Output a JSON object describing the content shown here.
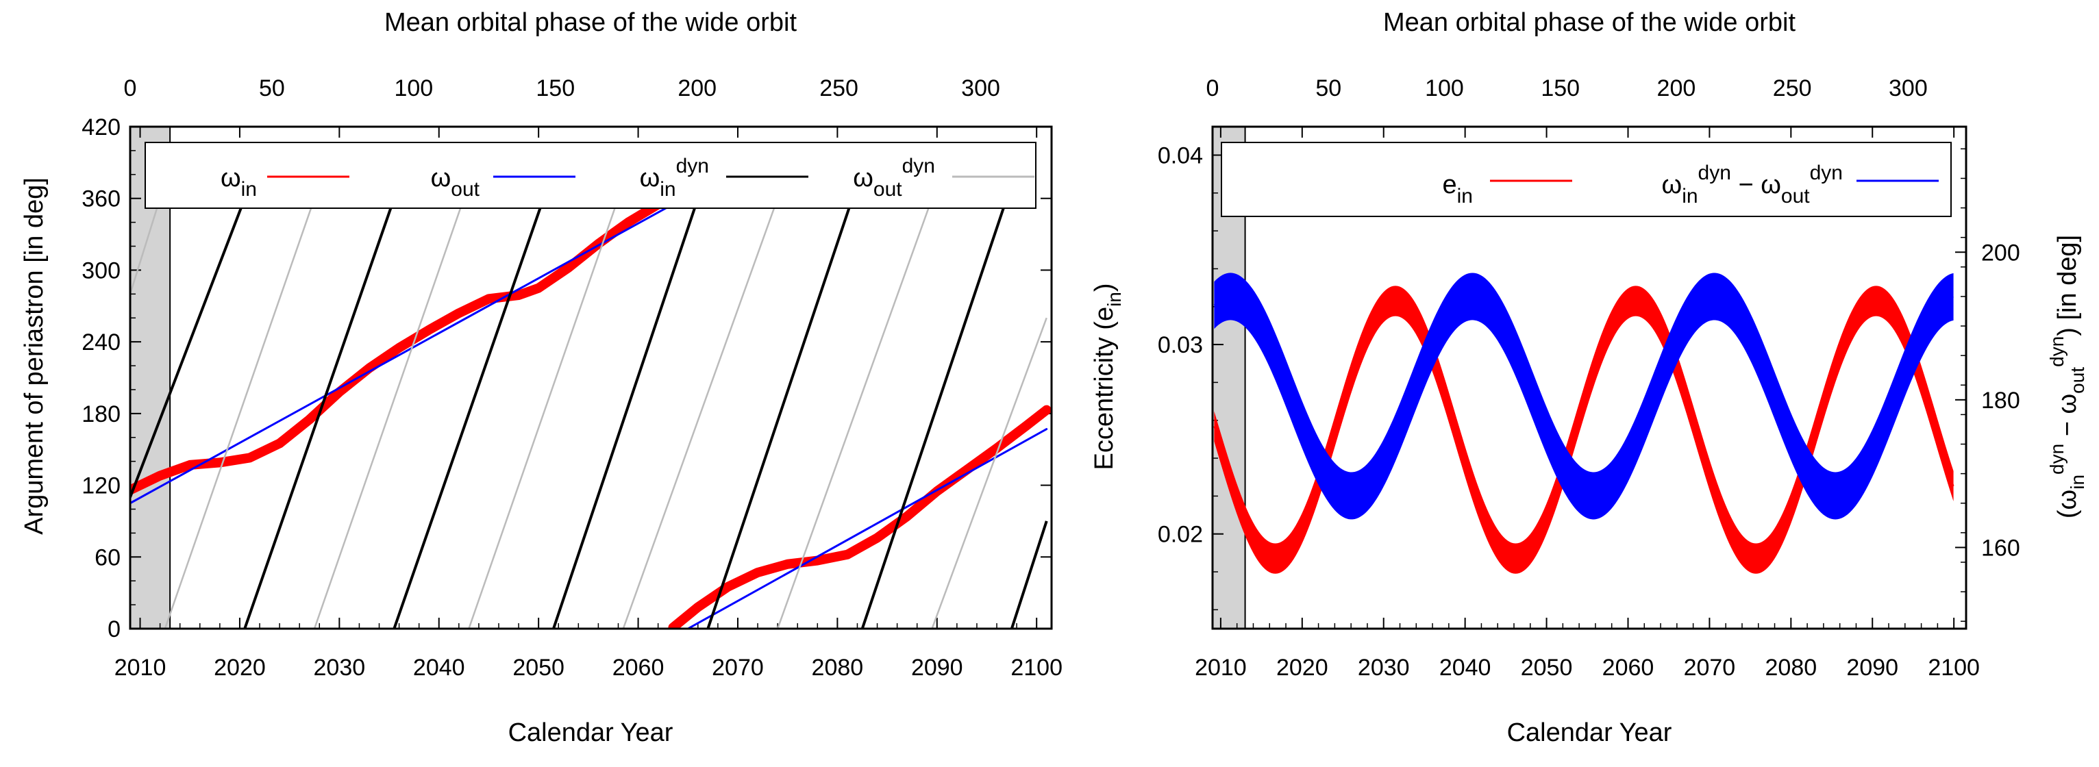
{
  "chart_data": [
    {
      "type": "line",
      "panel": "left",
      "top_axis_label": "Mean orbital phase of the wide orbit",
      "top_ticks": [
        0,
        50,
        100,
        150,
        200,
        250,
        300
      ],
      "xlabel": "Calendar Year",
      "ylabel": "Argument of periastron [in deg]",
      "x_ticks": [
        2010,
        2020,
        2030,
        2040,
        2050,
        2060,
        2070,
        2080,
        2090,
        2100
      ],
      "y_ticks": [
        0,
        60,
        120,
        180,
        240,
        300,
        360,
        420
      ],
      "xlim": [
        2009,
        2101.5
      ],
      "ylim": [
        0,
        420
      ],
      "shaded_region": [
        2009,
        2013
      ],
      "legend": {
        "placement": "top",
        "entries": [
          {
            "main": "ω",
            "sub": "in",
            "sup": "",
            "color": "#ff0000"
          },
          {
            "main": "ω",
            "sub": "out",
            "sup": "",
            "color": "#0000ff"
          },
          {
            "main": "ω",
            "sub": "in",
            "sup": "dyn",
            "color": "#000000"
          },
          {
            "main": "ω",
            "sub": "out",
            "sup": "dyn",
            "color": "#bbbbbb"
          }
        ]
      },
      "series": [
        {
          "key": "omega_in",
          "color": "#ff0000",
          "style": "thick-band",
          "x": [
            2009,
            2012,
            2015,
            2018,
            2021,
            2024,
            2027,
            2030,
            2033,
            2036,
            2039,
            2042,
            2045,
            2048,
            2050,
            2053,
            2056,
            2059,
            2062,
            2063.5
          ],
          "y": [
            116,
            128,
            137,
            139,
            143,
            155,
            175,
            198,
            218,
            235,
            250,
            264,
            276,
            279,
            285,
            302,
            322,
            340,
            355,
            361
          ]
        },
        {
          "key": "omega_in_wrap",
          "color": "#ff0000",
          "style": "thick-band",
          "x": [
            2063.5,
            2066,
            2069,
            2072,
            2075,
            2078,
            2081,
            2084,
            2087,
            2090,
            2093,
            2096,
            2099,
            2101
          ],
          "y": [
            1,
            18,
            35,
            47,
            54,
            57,
            62,
            76,
            94,
            115,
            133,
            151,
            170,
            183
          ]
        },
        {
          "key": "omega_out",
          "color": "#0000ff",
          "style": "line",
          "x": [
            2009,
            2065
          ],
          "y": [
            105,
            362
          ]
        },
        {
          "key": "omega_out_wrap",
          "color": "#0000ff",
          "style": "line",
          "x": [
            2065,
            2101
          ],
          "y": [
            0,
            167
          ]
        },
        {
          "key": "omega_in_dyn",
          "color": "#000000",
          "style": "sawtooth-steep",
          "segments": [
            [
              2009,
              110,
              2020.5,
              360
            ],
            [
              2020.5,
              0,
              2035.5,
              360
            ],
            [
              2035.5,
              0,
              2050.5,
              360
            ],
            [
              2051.5,
              0,
              2066,
              360
            ],
            [
              2067,
              0,
              2081.5,
              360
            ],
            [
              2082.5,
              0,
              2097,
              360
            ],
            [
              2097.5,
              0,
              2101,
              90
            ]
          ]
        },
        {
          "key": "omega_out_dyn",
          "color": "#bbbbbb",
          "style": "sawtooth",
          "segments": [
            [
              2009,
              280,
              2012,
              360
            ],
            [
              2012.5,
              0,
              2027.5,
              360
            ],
            [
              2027.5,
              0,
              2042.5,
              360
            ],
            [
              2043,
              0,
              2058,
              360
            ],
            [
              2058.5,
              0,
              2074,
              360
            ],
            [
              2074,
              0,
              2089.5,
              360
            ],
            [
              2089.5,
              0,
              2101,
              260
            ]
          ]
        }
      ]
    },
    {
      "type": "line",
      "panel": "right",
      "top_axis_label": "Mean orbital phase of the wide orbit",
      "top_ticks": [
        0,
        50,
        100,
        150,
        200,
        250,
        300
      ],
      "xlabel": "Calendar Year",
      "ylabel": "Eccentricity (e_in)",
      "y2label": "(ω_in^dyn − ω_out^dyn) [in deg]",
      "x_ticks": [
        2010,
        2020,
        2030,
        2040,
        2050,
        2060,
        2070,
        2080,
        2090,
        2100
      ],
      "y_ticks": [
        0.02,
        0.03,
        0.04
      ],
      "y2_ticks": [
        160,
        180,
        200
      ],
      "xlim": [
        2009,
        2101.5
      ],
      "ylim": [
        0.015,
        0.0415
      ],
      "y2lim": [
        149,
        217
      ],
      "shaded_region": [
        2009,
        2013
      ],
      "legend": {
        "placement": "top",
        "entries": [
          {
            "main": "e",
            "sub": "in",
            "sup": "",
            "color": "#ff0000"
          },
          {
            "main": "ω",
            "sub": "in",
            "sup": "dyn",
            "extra": " − ω",
            "sub2": "out",
            "sup2": "dyn",
            "color": "#0000ff"
          }
        ]
      },
      "series": [
        {
          "key": "e_in",
          "color": "#ff0000",
          "style": "oscillation-band",
          "model": "sinusoid",
          "period_years": 29.5,
          "mean": 0.0255,
          "amplitude": 0.0068,
          "min_at": 2016.7,
          "band_halfwidth": 0.0008
        },
        {
          "key": "delta_omega_dyn",
          "color": "#0000ff",
          "style": "oscillation-band",
          "axis": "y2",
          "model": "sinusoid",
          "period_years": 29.7,
          "mean": 180.5,
          "amplitude": 13.5,
          "max_at": 2011.2,
          "band_halfwidth": 3.2
        }
      ]
    }
  ]
}
